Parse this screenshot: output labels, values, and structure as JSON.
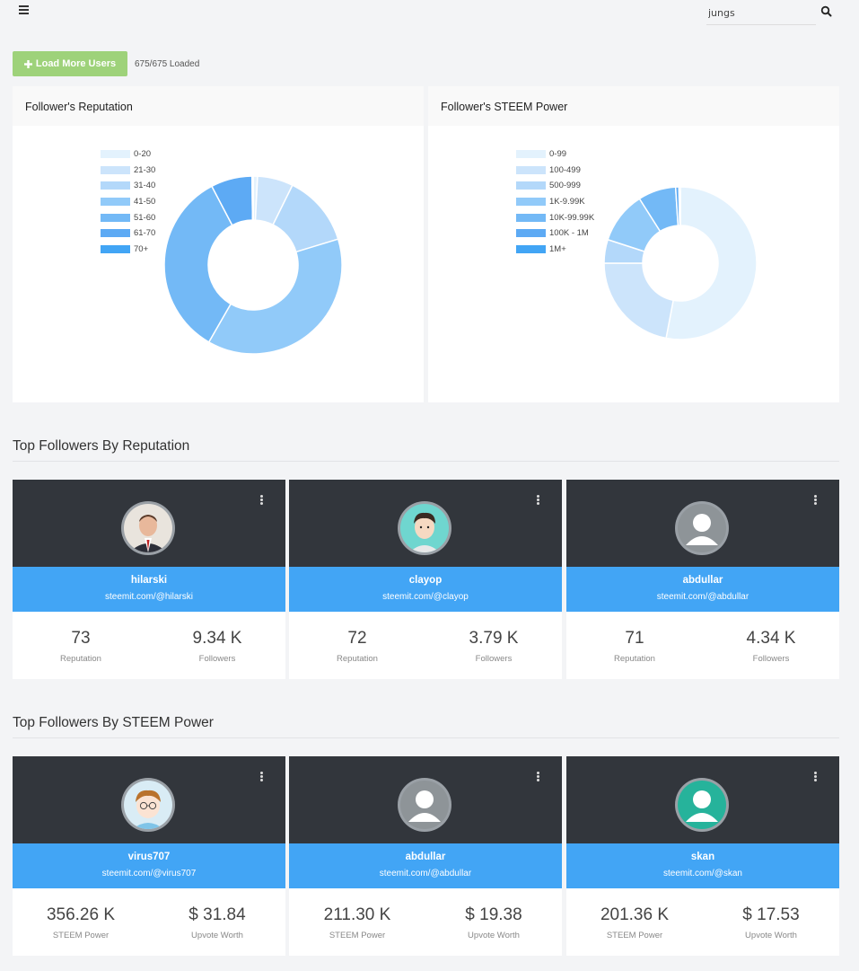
{
  "search": {
    "value": "jungs"
  },
  "toolbar": {
    "load_label": "Load More Users",
    "status": "675/675 Loaded"
  },
  "colors": {
    "accent_blue": "#42a5f5",
    "card_dark": "#32363c",
    "load_green": "#9ed27a"
  },
  "reputation_panel": {
    "title": "Follower's Reputation",
    "chart_data": {
      "type": "pie",
      "title": "Follower's Reputation",
      "legend_position": "top-left",
      "categories": [
        "0-20",
        "21-30",
        "31-40",
        "41-50",
        "51-60",
        "61-70",
        "70+"
      ],
      "values": [
        0.8,
        6.5,
        13.0,
        38.0,
        34.0,
        7.5,
        0.2
      ],
      "colors": [
        "#e3f2fd",
        "#cce4fb",
        "#b3d8fa",
        "#91caf9",
        "#73b9f6",
        "#5daaf4",
        "#42a5f5"
      ]
    }
  },
  "sp_panel": {
    "title": "Follower's STEEM Power",
    "chart_data": {
      "type": "pie",
      "title": "Follower's STEEM Power",
      "legend_position": "top-left",
      "categories": [
        "0-99",
        "100-499",
        "500-999",
        "1K-9.99K",
        "10K-99.99K",
        "100K - 1M",
        "1M+"
      ],
      "values": [
        53.0,
        22.0,
        5.0,
        11.0,
        8.0,
        0.7,
        0.3
      ],
      "colors": [
        "#e3f2fd",
        "#cce4fb",
        "#b3d8fa",
        "#91caf9",
        "#73b9f6",
        "#5daaf4",
        "#42a5f5"
      ]
    }
  },
  "rep_section": {
    "title": "Top Followers By Reputation",
    "cards": [
      {
        "name": "hilarski",
        "link": "steemit.com/@hilarski",
        "v1": "73",
        "l1": "Reputation",
        "v2": "9.34 K",
        "l2": "Followers",
        "avatar": "man-in-suit"
      },
      {
        "name": "clayop",
        "link": "steemit.com/@clayop",
        "v1": "72",
        "l1": "Reputation",
        "v2": "3.79 K",
        "l2": "Followers",
        "avatar": "cartoon-man"
      },
      {
        "name": "abdullar",
        "link": "steemit.com/@abdullar",
        "v1": "71",
        "l1": "Reputation",
        "v2": "4.34 K",
        "l2": "Followers",
        "avatar": "default-grey"
      }
    ]
  },
  "sp_section": {
    "title": "Top Followers By STEEM Power",
    "cards": [
      {
        "name": "virus707",
        "link": "steemit.com/@virus707",
        "v1": "356.26 K",
        "l1": "STEEM Power",
        "v2": "$ 31.84",
        "l2": "Upvote Worth",
        "avatar": "cartoon-glasses"
      },
      {
        "name": "abdullar",
        "link": "steemit.com/@abdullar",
        "v1": "211.30 K",
        "l1": "STEEM Power",
        "v2": "$ 19.38",
        "l2": "Upvote Worth",
        "avatar": "default-grey"
      },
      {
        "name": "skan",
        "link": "steemit.com/@skan",
        "v1": "201.36 K",
        "l1": "STEEM Power",
        "v2": "$ 17.53",
        "l2": "Upvote Worth",
        "avatar": "default-teal"
      }
    ]
  }
}
